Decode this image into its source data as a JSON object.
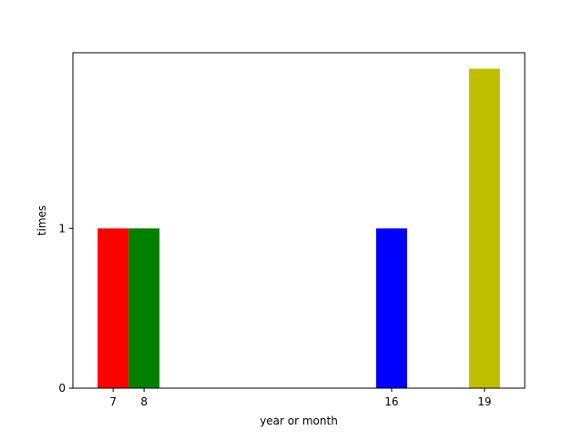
{
  "chart_data": {
    "type": "bar",
    "title": "",
    "xlabel": "year or month",
    "ylabel": "times",
    "x": [
      7,
      8,
      16,
      19
    ],
    "values": [
      1,
      1,
      1,
      2
    ],
    "colors": [
      "#ff0000",
      "#008000",
      "#0000ff",
      "#bfbf00"
    ],
    "bar_width": 1,
    "xlim": [
      5.7,
      20.3
    ],
    "ylim": [
      0,
      2.1
    ],
    "xticks": [
      7,
      8,
      16,
      19
    ],
    "xtick_labels": [
      "7",
      "8",
      "16",
      "19"
    ],
    "yticks": [
      0,
      1
    ],
    "ytick_labels": [
      "0",
      "1"
    ],
    "grid": false,
    "legend": "none"
  }
}
